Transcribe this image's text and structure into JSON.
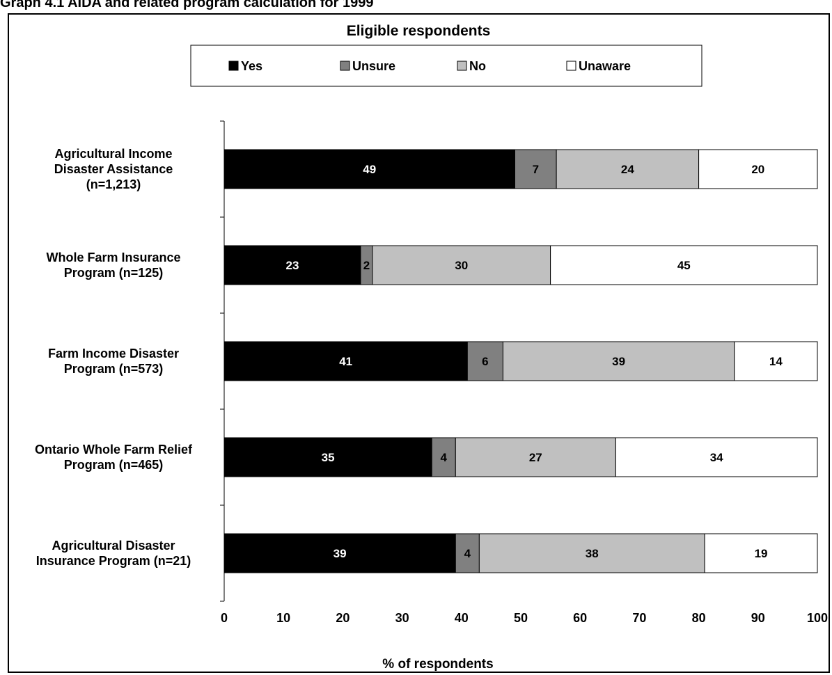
{
  "graph_title": "Graph 4.1 AIDA and related program calculation for 1999",
  "chart_data": {
    "type": "bar",
    "stacked": true,
    "orientation": "horizontal",
    "title": "Eligible respondents",
    "xlabel": "% of respondents",
    "ylabel": "",
    "xlim": [
      0,
      100
    ],
    "xticks": [
      0,
      10,
      20,
      30,
      40,
      50,
      60,
      70,
      80,
      90,
      100
    ],
    "grid": false,
    "legend_position": "top",
    "categories": [
      [
        "Agricultural Income",
        "Disaster Assistance",
        "(n=1,213)"
      ],
      [
        "Whole Farm Insurance",
        "Program (n=125)"
      ],
      [
        "Farm Income Disaster",
        "Program (n=573)"
      ],
      [
        "Ontario Whole Farm Relief",
        "Program (n=465)"
      ],
      [
        "Agricultural Disaster",
        "Insurance Program (n=21)"
      ]
    ],
    "series": [
      {
        "name": "Yes",
        "color": "#000000",
        "label_color": "#ffffff",
        "values": [
          49,
          23,
          41,
          35,
          39
        ]
      },
      {
        "name": "Unsure",
        "color": "#808080",
        "label_color": "#000000",
        "values": [
          7,
          2,
          6,
          4,
          4
        ]
      },
      {
        "name": "No",
        "color": "#c0c0c0",
        "label_color": "#000000",
        "values": [
          24,
          30,
          39,
          27,
          38
        ]
      },
      {
        "name": "Unaware",
        "color": "#ffffff",
        "label_color": "#000000",
        "values": [
          20,
          45,
          14,
          34,
          19
        ]
      }
    ]
  }
}
